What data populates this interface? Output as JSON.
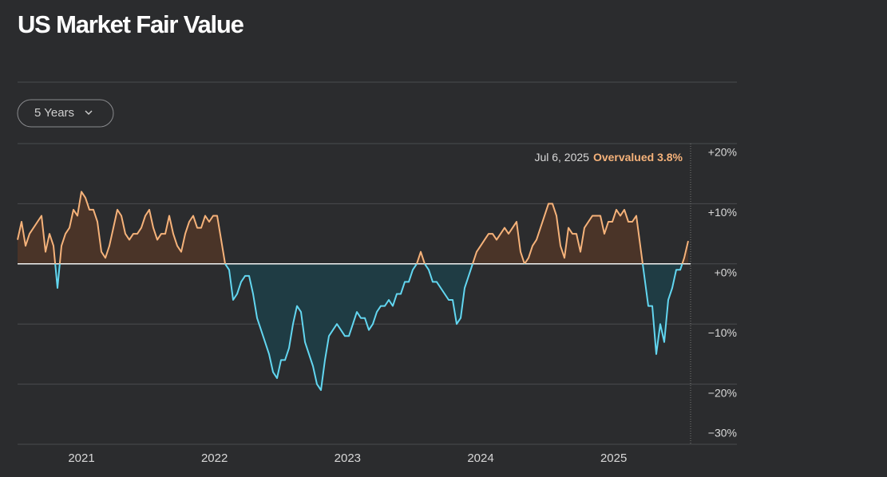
{
  "chart_data": {
    "type": "line",
    "title": "US Market Fair Value",
    "range_button": "5 Years",
    "annotation": {
      "date": "Jul 6, 2025",
      "text": "Overvalued 3.8%"
    },
    "positive_color": "#f5b27a",
    "positive_fill": "#4a3428",
    "negative_color": "#62d6f0",
    "negative_fill": "#1f3c44",
    "x": [
      2020.52,
      2020.55,
      2020.58,
      2020.61,
      2020.64,
      2020.67,
      2020.7,
      2020.73,
      2020.76,
      2020.79,
      2020.82,
      2020.85,
      2020.88,
      2020.91,
      2020.94,
      2020.97,
      2021,
      2021.03,
      2021.06,
      2021.09,
      2021.12,
      2021.15,
      2021.18,
      2021.21,
      2021.24,
      2021.27,
      2021.3,
      2021.33,
      2021.36,
      2021.39,
      2021.42,
      2021.45,
      2021.48,
      2021.51,
      2021.54,
      2021.57,
      2021.6,
      2021.63,
      2021.66,
      2021.69,
      2021.72,
      2021.75,
      2021.78,
      2021.81,
      2021.84,
      2021.87,
      2021.9,
      2021.93,
      2021.96,
      2021.99,
      2022.02,
      2022.05,
      2022.08,
      2022.11,
      2022.14,
      2022.17,
      2022.2,
      2022.23,
      2022.26,
      2022.29,
      2022.32,
      2022.35,
      2022.38,
      2022.41,
      2022.44,
      2022.47,
      2022.5,
      2022.53,
      2022.56,
      2022.59,
      2022.62,
      2022.65,
      2022.68,
      2022.71,
      2022.74,
      2022.77,
      2022.8,
      2022.83,
      2022.86,
      2022.89,
      2022.92,
      2022.95,
      2022.98,
      2023.01,
      2023.04,
      2023.07,
      2023.1,
      2023.13,
      2023.16,
      2023.19,
      2023.22,
      2023.25,
      2023.28,
      2023.31,
      2023.34,
      2023.37,
      2023.4,
      2023.43,
      2023.46,
      2023.49,
      2023.52,
      2023.55,
      2023.58,
      2023.61,
      2023.64,
      2023.67,
      2023.7,
      2023.73,
      2023.76,
      2023.79,
      2023.82,
      2023.85,
      2023.88,
      2023.91,
      2023.94,
      2023.97,
      2024,
      2024.03,
      2024.06,
      2024.09,
      2024.12,
      2024.15,
      2024.18,
      2024.21,
      2024.24,
      2024.27,
      2024.3,
      2024.33,
      2024.36,
      2024.39,
      2024.42,
      2024.45,
      2024.48,
      2024.51,
      2024.54,
      2024.57,
      2024.6,
      2024.63,
      2024.66,
      2024.69,
      2024.72,
      2024.75,
      2024.78,
      2024.81,
      2024.84,
      2024.87,
      2024.9,
      2024.93,
      2024.96,
      2024.99,
      2025.02,
      2025.05,
      2025.08,
      2025.11,
      2025.14,
      2025.17,
      2025.2,
      2025.23,
      2025.26,
      2025.29,
      2025.32,
      2025.35,
      2025.38,
      2025.41,
      2025.44,
      2025.47,
      2025.5,
      2025.53,
      2025.56
    ],
    "values": [
      4,
      7,
      3,
      5,
      6,
      7,
      8,
      2,
      5,
      3,
      -4,
      3,
      5,
      6,
      9,
      8,
      12,
      11,
      9,
      9,
      7,
      2,
      1,
      3,
      6,
      9,
      8,
      5,
      4,
      5,
      5,
      6,
      8,
      9,
      6,
      4,
      5,
      5,
      8,
      5,
      3,
      2,
      5,
      7,
      8,
      6,
      6,
      8,
      7,
      8,
      8,
      4,
      0,
      -1,
      -6,
      -5,
      -3,
      -2,
      -2,
      -5,
      -9,
      -11,
      -13,
      -15,
      -18,
      -19,
      -16,
      -16,
      -14,
      -10,
      -7,
      -8,
      -13,
      -15,
      -17,
      -20,
      -21,
      -16,
      -12,
      -11,
      -10,
      -11,
      -12,
      -12,
      -10,
      -8,
      -9,
      -9,
      -11,
      -10,
      -8,
      -7,
      -7,
      -6,
      -7,
      -5,
      -5,
      -3,
      -3,
      -1,
      0,
      2,
      0,
      -1,
      -3,
      -3,
      -4,
      -5,
      -6,
      -6,
      -10,
      -9,
      -4,
      -2,
      0,
      2,
      3,
      4,
      5,
      5,
      4,
      5,
      6,
      5,
      6,
      7,
      2,
      0,
      1,
      3,
      4,
      6,
      8,
      10,
      10,
      8,
      3,
      1,
      6,
      5,
      5,
      2,
      6,
      7,
      8,
      8,
      8,
      5,
      7,
      7,
      9,
      8,
      9,
      7,
      7,
      8,
      3,
      -2,
      -7,
      -7,
      -15,
      -10,
      -13,
      -6,
      -4,
      -1,
      -1,
      1,
      3.8
    ],
    "xlim": [
      2020.52,
      2025.56
    ],
    "xticks": [
      2021,
      2022,
      2023,
      2024,
      2025
    ],
    "ylim": [
      -30,
      20
    ],
    "yticks": [
      {
        "value": 20,
        "label": "+20%"
      },
      {
        "value": 10,
        "label": "+10%"
      },
      {
        "value": 0,
        "label": "+0%"
      },
      {
        "value": -10,
        "label": "−10%"
      },
      {
        "value": -20,
        "label": "−20%"
      },
      {
        "value": -30,
        "label": "−30%"
      }
    ],
    "grid": true
  }
}
